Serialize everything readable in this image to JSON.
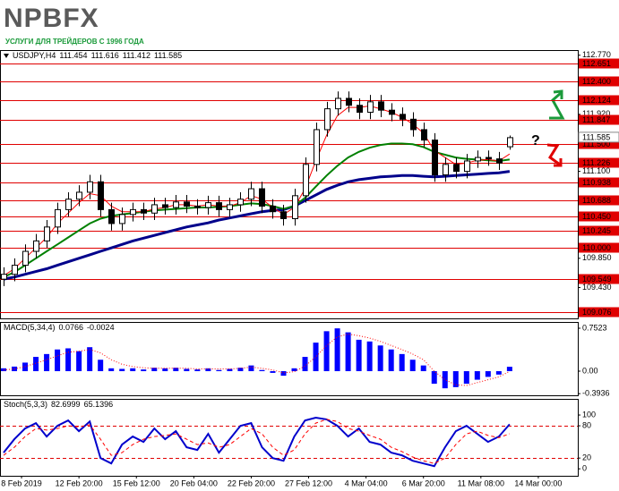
{
  "logo": {
    "name": "NPBFX",
    "tagline": "УСЛУГИ ДЛЯ ТРЕЙДЕРОВ С 1996 ГОДА"
  },
  "chart_data": [
    {
      "type": "candlestick",
      "title": "USDJPY,H4",
      "quote": [
        111.454,
        111.616,
        111.412,
        111.585
      ],
      "annotation": "?",
      "x": [
        0,
        3,
        6,
        9,
        12,
        15,
        18,
        21,
        24,
        27,
        30,
        33,
        36,
        39,
        42,
        45,
        48,
        51,
        54,
        57,
        60,
        63,
        66,
        69,
        72,
        75,
        78,
        81,
        84,
        87,
        90,
        93,
        96,
        99,
        102,
        105,
        108,
        111,
        114,
        117,
        120,
        123,
        126,
        129,
        132,
        135,
        138,
        141
      ],
      "open": [
        109.55,
        109.62,
        109.75,
        109.95,
        110.1,
        110.3,
        110.55,
        110.7,
        110.8,
        110.95,
        110.55,
        110.35,
        110.48,
        110.55,
        110.5,
        110.62,
        110.58,
        110.66,
        110.6,
        110.58,
        110.65,
        110.55,
        110.62,
        110.7,
        110.85,
        110.6,
        110.52,
        110.42,
        110.75,
        111.2,
        111.7,
        112.0,
        112.15,
        112.05,
        111.95,
        112.1,
        111.98,
        111.92,
        111.85,
        111.7,
        111.55,
        111.05,
        111.2,
        111.1,
        111.25,
        111.3,
        111.28,
        111.454
      ],
      "high": [
        109.72,
        109.85,
        110.05,
        110.2,
        110.4,
        110.65,
        110.8,
        110.9,
        111.05,
        111.05,
        110.65,
        110.58,
        110.65,
        110.65,
        110.72,
        110.72,
        110.76,
        110.76,
        110.7,
        110.75,
        110.75,
        110.72,
        110.8,
        110.95,
        110.95,
        110.7,
        110.62,
        110.85,
        111.3,
        111.8,
        112.1,
        112.25,
        112.25,
        112.15,
        112.2,
        112.2,
        112.08,
        112.02,
        111.95,
        111.8,
        111.65,
        111.3,
        111.3,
        111.35,
        111.4,
        111.4,
        111.38,
        111.616
      ],
      "low": [
        109.45,
        109.52,
        109.65,
        109.85,
        110.0,
        110.2,
        110.45,
        110.6,
        110.7,
        110.45,
        110.25,
        110.25,
        110.38,
        110.4,
        110.4,
        110.48,
        110.48,
        110.5,
        110.48,
        110.48,
        110.45,
        110.45,
        110.52,
        110.6,
        110.5,
        110.42,
        110.32,
        110.32,
        110.65,
        111.1,
        111.6,
        111.9,
        111.95,
        111.85,
        111.85,
        111.88,
        111.82,
        111.75,
        111.6,
        111.45,
        110.95,
        110.95,
        111.0,
        111.0,
        111.15,
        111.18,
        111.12,
        111.412
      ],
      "close": [
        109.62,
        109.75,
        109.95,
        110.1,
        110.3,
        110.55,
        110.7,
        110.8,
        110.95,
        110.55,
        110.35,
        110.48,
        110.55,
        110.5,
        110.62,
        110.58,
        110.66,
        110.6,
        110.58,
        110.65,
        110.55,
        110.62,
        110.7,
        110.85,
        110.6,
        110.52,
        110.42,
        110.75,
        111.2,
        111.7,
        112.0,
        112.15,
        112.05,
        111.95,
        112.1,
        111.98,
        111.92,
        111.85,
        111.7,
        111.55,
        111.05,
        111.2,
        111.1,
        111.25,
        111.3,
        111.28,
        111.22,
        111.585
      ],
      "series": [
        {
          "color": "#00008b",
          "width": 3,
          "style": "line",
          "values": [
            109.55,
            109.58,
            109.62,
            109.66,
            109.7,
            109.75,
            109.8,
            109.85,
            109.9,
            109.95,
            110.0,
            110.05,
            110.1,
            110.14,
            110.18,
            110.22,
            110.26,
            110.3,
            110.33,
            110.36,
            110.4,
            110.43,
            110.46,
            110.49,
            110.52,
            110.54,
            110.55,
            110.6,
            110.68,
            110.76,
            110.84,
            110.9,
            110.95,
            110.98,
            111.0,
            111.02,
            111.03,
            111.04,
            111.04,
            111.03,
            111.02,
            111.03,
            111.04,
            111.05,
            111.06,
            111.07,
            111.08,
            111.1
          ]
        },
        {
          "color": "#008000",
          "width": 2,
          "style": "line",
          "values": [
            109.58,
            109.65,
            109.75,
            109.85,
            109.95,
            110.05,
            110.15,
            110.25,
            110.35,
            110.42,
            110.46,
            110.48,
            110.5,
            110.52,
            110.54,
            110.55,
            110.56,
            110.57,
            110.58,
            110.58,
            110.59,
            110.6,
            110.62,
            110.64,
            110.63,
            110.6,
            110.56,
            110.6,
            110.72,
            110.88,
            111.04,
            111.18,
            111.3,
            111.38,
            111.44,
            111.48,
            111.5,
            111.5,
            111.49,
            111.45,
            111.38,
            111.34,
            111.3,
            111.28,
            111.27,
            111.26,
            111.25,
            111.27
          ]
        },
        {
          "color": "#ff0000",
          "width": 1,
          "style": "line",
          "values": [
            109.6,
            109.7,
            109.85,
            110.0,
            110.15,
            110.35,
            110.5,
            110.65,
            110.78,
            110.75,
            110.6,
            110.52,
            110.52,
            110.52,
            110.56,
            110.58,
            110.62,
            110.62,
            110.6,
            110.62,
            110.6,
            110.6,
            110.65,
            110.75,
            110.7,
            110.58,
            110.48,
            110.58,
            110.85,
            111.25,
            111.62,
            111.9,
            112.02,
            112.02,
            112.04,
            112.0,
            111.95,
            111.88,
            111.78,
            111.65,
            111.4,
            111.3,
            111.2,
            111.22,
            111.26,
            111.27,
            111.25,
            111.35
          ]
        }
      ],
      "xlim": [
        -1,
        160
      ],
      "ylim": [
        108.986,
        112.844
      ],
      "yticks": [
        {
          "value": 112.77,
          "label": "112.770"
        },
        {
          "value": 111.92,
          "label": "111.920"
        },
        {
          "value": 111.1,
          "label": "111.100"
        },
        {
          "value": 109.85,
          "label": "109.850"
        },
        {
          "value": 109.43,
          "label": "109.430"
        }
      ],
      "levels": [
        112.651,
        {
          "value": 112.4,
          "label": "112.400"
        },
        112.124,
        111.847,
        {
          "value": 111.5,
          "label": "111.500"
        },
        111.226,
        110.938,
        110.688,
        {
          "value": 110.45,
          "label": "110.450"
        },
        110.245,
        {
          "value": 110,
          "label": "110.000"
        },
        109.549,
        109.076
      ],
      "level_color": "#e00000",
      "level_style": "solid",
      "level_boxes": true,
      "last_price_box": true
    },
    {
      "type": "macd",
      "title": "MACD(5,34,4)",
      "x": [
        0,
        3,
        6,
        9,
        12,
        15,
        18,
        21,
        24,
        27,
        30,
        33,
        36,
        39,
        42,
        45,
        48,
        51,
        54,
        57,
        60,
        63,
        66,
        69,
        72,
        75,
        78,
        81,
        84,
        87,
        90,
        93,
        96,
        99,
        102,
        105,
        108,
        111,
        114,
        117,
        120,
        123,
        126,
        129,
        132,
        135,
        138,
        141
      ],
      "series": [
        {
          "color": "#0000ff",
          "style": "bar",
          "values": [
            0.05,
            0.08,
            0.15,
            0.25,
            0.3,
            0.38,
            0.4,
            0.35,
            0.42,
            0.2,
            0.05,
            0.04,
            0.05,
            0.03,
            0.06,
            0.05,
            0.06,
            0.04,
            0.03,
            0.05,
            0.02,
            0.04,
            0.06,
            0.1,
            0.02,
            -0.03,
            -0.08,
            0.05,
            0.25,
            0.5,
            0.7,
            0.75,
            0.68,
            0.55,
            0.52,
            0.45,
            0.38,
            0.3,
            0.2,
            0.1,
            -0.22,
            -0.3,
            -0.28,
            -0.22,
            -0.15,
            -0.1,
            -0.06,
            0.0766
          ]
        },
        {
          "color": "#ff0000",
          "width": 1,
          "style": "dotted",
          "values": [
            0.02,
            0.04,
            0.08,
            0.14,
            0.2,
            0.27,
            0.33,
            0.35,
            0.38,
            0.32,
            0.2,
            0.12,
            0.08,
            0.06,
            0.05,
            0.05,
            0.05,
            0.05,
            0.04,
            0.04,
            0.04,
            0.04,
            0.05,
            0.07,
            0.05,
            0.02,
            -0.03,
            -0.01,
            0.09,
            0.25,
            0.45,
            0.6,
            0.65,
            0.62,
            0.58,
            0.52,
            0.45,
            0.38,
            0.3,
            0.2,
            0.0,
            -0.15,
            -0.24,
            -0.25,
            -0.2,
            -0.15,
            -0.1,
            -0.0024
          ]
        }
      ],
      "xlim": [
        -1,
        160
      ],
      "ylim": [
        -0.423,
        0.862
      ],
      "yticks": [
        0.7523,
        {
          "value": 0,
          "label": "0.00"
        },
        -0.3936
      ]
    },
    {
      "type": "stoch",
      "title": "Stoch(5,3,3)",
      "x": [
        0,
        3,
        6,
        9,
        12,
        15,
        18,
        21,
        24,
        27,
        30,
        33,
        36,
        39,
        42,
        45,
        48,
        51,
        54,
        57,
        60,
        63,
        66,
        69,
        72,
        75,
        78,
        81,
        84,
        87,
        90,
        93,
        96,
        99,
        102,
        105,
        108,
        111,
        114,
        117,
        120,
        123,
        126,
        129,
        132,
        135,
        138,
        141
      ],
      "series": [
        {
          "color": "#0000cc",
          "width": 2,
          "style": "line",
          "values": [
            30,
            55,
            75,
            85,
            60,
            80,
            90,
            70,
            88,
            20,
            10,
            45,
            60,
            50,
            75,
            55,
            70,
            40,
            35,
            65,
            30,
            55,
            80,
            85,
            40,
            20,
            15,
            60,
            90,
            95,
            92,
            80,
            60,
            75,
            50,
            45,
            30,
            25,
            15,
            10,
            5,
            40,
            70,
            80,
            65,
            50,
            60,
            82.6999
          ]
        },
        {
          "color": "#ff0000",
          "width": 1,
          "style": "dashed",
          "values": [
            25,
            40,
            60,
            75,
            72,
            75,
            80,
            78,
            82,
            55,
            25,
            30,
            45,
            55,
            60,
            62,
            65,
            55,
            45,
            48,
            40,
            45,
            60,
            75,
            65,
            40,
            25,
            35,
            65,
            85,
            92,
            88,
            75,
            70,
            62,
            55,
            40,
            32,
            22,
            15,
            10,
            20,
            45,
            65,
            70,
            62,
            58,
            65.1396
          ]
        }
      ],
      "xlim": [
        -1,
        160
      ],
      "ylim": [
        -13,
        130
      ],
      "yticks": [
        100,
        80,
        20,
        0
      ],
      "levels": [
        80,
        20
      ],
      "level_color": "#e00000",
      "level_style": "dashed",
      "level_boxes": false,
      "xticks": [
        {
          "value": 5,
          "label": "8 Feb 2019"
        },
        {
          "value": 21,
          "label": "12 Feb 20:00"
        },
        {
          "value": 37,
          "label": "15 Feb 12:00"
        },
        {
          "value": 53,
          "label": "20 Feb 04:00"
        },
        {
          "value": 69,
          "label": "22 Feb 20:00"
        },
        {
          "value": 85,
          "label": "27 Feb 12:00"
        },
        {
          "value": 101,
          "label": "4 Mar 04:00"
        },
        {
          "value": 117,
          "label": "6 Mar 20:00"
        },
        {
          "value": 133,
          "label": "11 Mar 08:00"
        },
        {
          "value": 149,
          "label": "14 Mar 00:00"
        }
      ]
    }
  ]
}
